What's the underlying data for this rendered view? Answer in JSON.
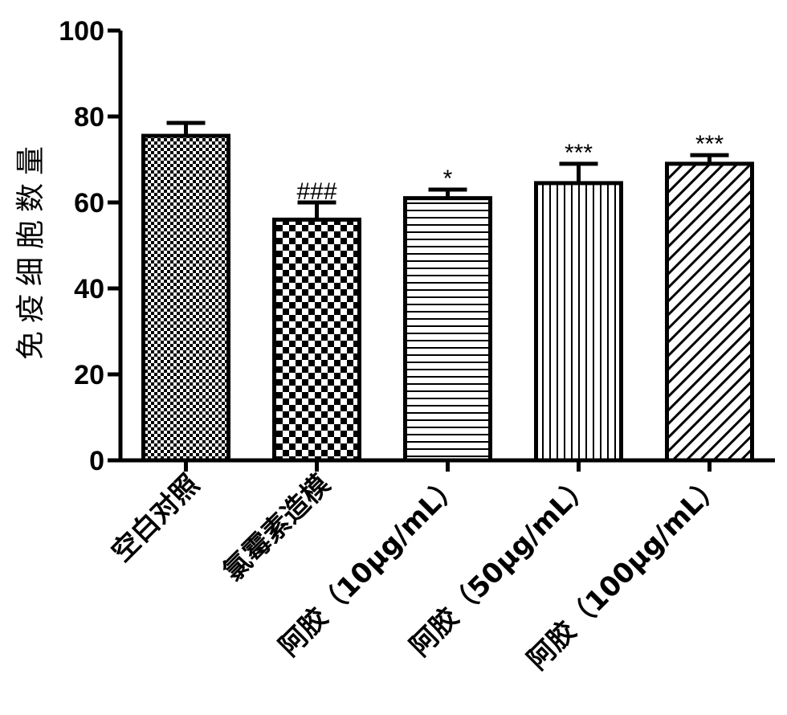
{
  "chart_data": {
    "type": "bar",
    "title": "",
    "xlabel": "",
    "ylabel": "免疫细胞数量",
    "ylim": [
      0,
      100
    ],
    "yticks": [
      0,
      20,
      40,
      60,
      80,
      100
    ],
    "grid": false,
    "categories": [
      "空白对照",
      "氯霉素造模",
      "阿胶（10μg/mL）",
      "阿胶（50μg/mL）",
      "阿胶（100μg/mL）"
    ],
    "values": [
      75.5,
      56,
      61,
      64.5,
      69
    ],
    "errors": [
      3,
      4,
      2,
      4.5,
      2
    ],
    "significance": [
      "",
      "###",
      "*",
      "***",
      "***"
    ],
    "patterns": [
      "small-checker",
      "large-checker",
      "horizontal-lines",
      "vertical-lines",
      "diagonal-lines"
    ],
    "bar_color": "#000000",
    "background": "#ffffff"
  }
}
